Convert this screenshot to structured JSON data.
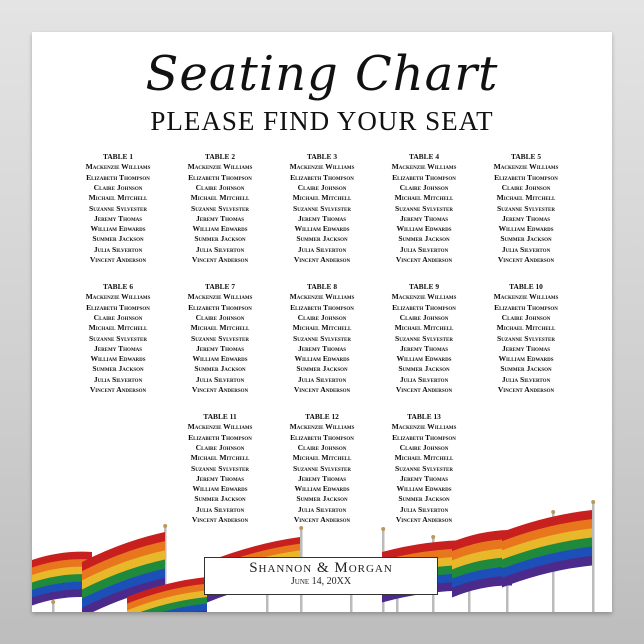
{
  "title": "Seating Chart",
  "subtitle": "PLEASE FIND YOUR SEAT",
  "couple": "Shannon & Morgan",
  "date": "June 14, 20XX",
  "flag_colors": [
    "#c8201e",
    "#e8761c",
    "#e9b82a",
    "#1f8a3c",
    "#1c4fb8",
    "#4b2a8c"
  ],
  "tables": [
    {
      "label": "TABLE 1",
      "guests": [
        "Mackenzie Williams",
        "Elizabeth Thompson",
        "Claire Johnson",
        "Michael Mitchell",
        "Suzanne Sylvester",
        "Jeremy Thomas",
        "William Edwards",
        "Summer Jackson",
        "Julia Silverton",
        "Vincent Anderson"
      ]
    },
    {
      "label": "TABLE 2",
      "guests": [
        "Mackenzie Williams",
        "Elizabeth Thompson",
        "Claire Johnson",
        "Michael Mitchell",
        "Suzanne Sylvester",
        "Jeremy Thomas",
        "William Edwards",
        "Summer Jackson",
        "Julia Silverton",
        "Vincent Anderson"
      ]
    },
    {
      "label": "TABLE 3",
      "guests": [
        "Mackenzie Williams",
        "Elizabeth Thompson",
        "Claire Johnson",
        "Michael Mitchell",
        "Suzanne Sylvester",
        "Jeremy Thomas",
        "William Edwards",
        "Summer Jackson",
        "Julia Silverton",
        "Vincent Anderson"
      ]
    },
    {
      "label": "TABLE 4",
      "guests": [
        "Mackenzie Williams",
        "Elizabeth Thompson",
        "Claire Johnson",
        "Michael Mitchell",
        "Suzanne Sylvester",
        "Jeremy Thomas",
        "William Edwards",
        "Summer Jackson",
        "Julia Silverton",
        "Vincent Anderson"
      ]
    },
    {
      "label": "TABLE 5",
      "guests": [
        "Mackenzie Williams",
        "Elizabeth Thompson",
        "Claire Johnson",
        "Michael Mitchell",
        "Suzanne Sylvester",
        "Jeremy Thomas",
        "William Edwards",
        "Summer Jackson",
        "Julia Silverton",
        "Vincent Anderson"
      ]
    },
    {
      "label": "TABLE 6",
      "guests": [
        "Mackenzie Williams",
        "Elizabeth Thompson",
        "Claire Johnson",
        "Michael Mitchell",
        "Suzanne Sylvester",
        "Jeremy Thomas",
        "William Edwards",
        "Summer Jackson",
        "Julia Silverton",
        "Vincent Anderson"
      ]
    },
    {
      "label": "TABLE 7",
      "guests": [
        "Mackenzie Williams",
        "Elizabeth Thompson",
        "Claire Johnson",
        "Michael Mitchell",
        "Suzanne Sylvester",
        "Jeremy Thomas",
        "William Edwards",
        "Summer Jackson",
        "Julia Silverton",
        "Vincent Anderson"
      ]
    },
    {
      "label": "TABLE 8",
      "guests": [
        "Mackenzie Williams",
        "Elizabeth Thompson",
        "Claire Johnson",
        "Michael Mitchell",
        "Suzanne Sylvester",
        "Jeremy Thomas",
        "William Edwards",
        "Summer Jackson",
        "Julia Silverton",
        "Vincent Anderson"
      ]
    },
    {
      "label": "TABLE 9",
      "guests": [
        "Mackenzie Williams",
        "Elizabeth Thompson",
        "Claire Johnson",
        "Michael Mitchell",
        "Suzanne Sylvester",
        "Jeremy Thomas",
        "William Edwards",
        "Summer Jackson",
        "Julia Silverton",
        "Vincent Anderson"
      ]
    },
    {
      "label": "TABLE 10",
      "guests": [
        "Mackenzie Williams",
        "Elizabeth Thompson",
        "Claire Johnson",
        "Michael Mitchell",
        "Suzanne Sylvester",
        "Jeremy Thomas",
        "William Edwards",
        "Summer Jackson",
        "Julia Silverton",
        "Vincent Anderson"
      ]
    },
    {
      "label": "TABLE 11",
      "guests": [
        "Mackenzie Williams",
        "Elizabeth Thompson",
        "Claire Johnson",
        "Michael Mitchell",
        "Suzanne Sylvester",
        "Jeremy Thomas",
        "William Edwards",
        "Summer Jackson",
        "Julia Silverton",
        "Vincent Anderson"
      ]
    },
    {
      "label": "TABLE 12",
      "guests": [
        "Mackenzie Williams",
        "Elizabeth Thompson",
        "Claire Johnson",
        "Michael Mitchell",
        "Suzanne Sylvester",
        "Jeremy Thomas",
        "William Edwards",
        "Summer Jackson",
        "Julia Silverton",
        "Vincent Anderson"
      ]
    },
    {
      "label": "TABLE 13",
      "guests": [
        "Mackenzie Williams",
        "Elizabeth Thompson",
        "Claire Johnson",
        "Michael Mitchell",
        "Suzanne Sylvester",
        "Jeremy Thomas",
        "William Edwards",
        "Summer Jackson",
        "Julia Silverton",
        "Vincent Anderson"
      ]
    }
  ]
}
